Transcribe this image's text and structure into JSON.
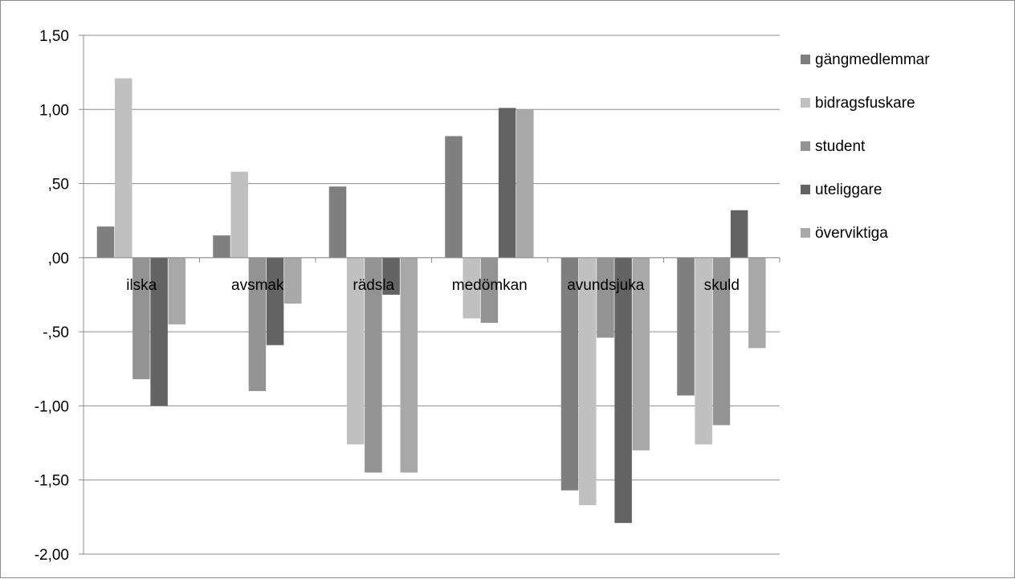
{
  "chart_data": {
    "type": "bar",
    "title": "",
    "xlabel": "",
    "ylabel": "",
    "ylim": [
      -2.0,
      1.5
    ],
    "yticks": [
      1.5,
      1.0,
      0.5,
      0.0,
      -0.5,
      -1.0,
      -1.5,
      -2.0
    ],
    "ytick_labels": [
      "1,50",
      "1,00",
      ",50",
      ",00",
      "-,50",
      "-1,00",
      "-1,50",
      "-2,00"
    ],
    "grid": true,
    "legend_position": "right",
    "categories": [
      "ilska",
      "avsmak",
      "rädsla",
      "medömkan",
      "avundsjuka",
      "skuld"
    ],
    "series": [
      {
        "name": "gängmedlemmar",
        "color": "#7f7f7f",
        "values": [
          0.21,
          0.15,
          0.48,
          0.82,
          -1.57,
          -0.93
        ]
      },
      {
        "name": "bidragsfuskare",
        "color": "#c0c0c0",
        "values": [
          1.21,
          0.58,
          -1.26,
          -0.41,
          -1.67,
          -1.26
        ]
      },
      {
        "name": "student",
        "color": "#939393",
        "values": [
          -0.82,
          -0.9,
          -1.45,
          -0.44,
          -0.54,
          -1.13
        ]
      },
      {
        "name": "uteliggare",
        "color": "#636363",
        "values": [
          -1.0,
          -0.59,
          -0.25,
          1.01,
          -1.79,
          0.32
        ]
      },
      {
        "name": "överviktiga",
        "color": "#a8a8a8",
        "values": [
          -0.45,
          -0.31,
          -1.45,
          1.0,
          -1.3,
          -0.61
        ]
      }
    ]
  }
}
